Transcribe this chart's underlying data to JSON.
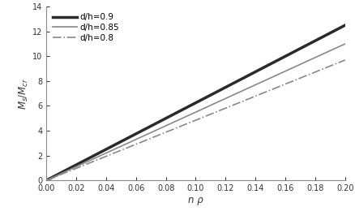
{
  "title": "",
  "xlabel": "n ρ",
  "ylabel": "$M_s / M_{cr}$",
  "xlim": [
    0.0,
    0.2
  ],
  "ylim": [
    0,
    14
  ],
  "xticks": [
    0.0,
    0.02,
    0.04,
    0.06,
    0.08,
    0.1,
    0.12,
    0.14,
    0.16,
    0.18,
    0.2
  ],
  "yticks": [
    0,
    2,
    4,
    6,
    8,
    10,
    12,
    14
  ],
  "lines": [
    {
      "label": "d/h=0.9",
      "slope": 62.5,
      "color": "#2a2a2a",
      "linewidth": 2.5,
      "linestyle": "solid"
    },
    {
      "label": "d/h=0.85",
      "slope": 55.0,
      "color": "#888888",
      "linewidth": 1.2,
      "linestyle": "solid"
    },
    {
      "label": "d/h=0.8",
      "slope": 48.5,
      "color": "#888888",
      "linewidth": 1.2,
      "linestyle": "dashdot"
    }
  ],
  "legend_loc": "upper left",
  "legend_fontsize": 7.5,
  "tick_fontsize": 7,
  "label_fontsize": 8.5,
  "background_color": "#ffffff",
  "grid": false,
  "spine_color": "#888888"
}
